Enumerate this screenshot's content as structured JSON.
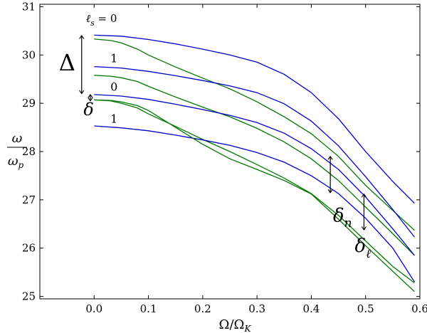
{
  "chart_data": {
    "type": "line",
    "title": "",
    "xlabel": "Ω/Ω_K",
    "ylabel": "ω/ω_p",
    "xlim": [
      -0.1,
      0.6
    ],
    "ylim": [
      24.95,
      31.05
    ],
    "xticks": [
      "0.0",
      "0.1",
      "0.2",
      "0.3",
      "0.4",
      "0.5",
      "0.6"
    ],
    "yticks": [
      "25",
      "26",
      "27",
      "28",
      "29",
      "30",
      "31"
    ],
    "grid": false,
    "legend": "none",
    "colors": {
      "blue": "#0000cc",
      "green": "#007700"
    },
    "series": [
      {
        "color": "blue",
        "x": [
          0,
          0.05,
          0.1,
          0.15,
          0.2,
          0.25,
          0.3,
          0.35,
          0.4,
          0.45,
          0.5,
          0.55,
          0.59
        ],
        "y": [
          30.41,
          30.39,
          30.32,
          30.23,
          30.12,
          30.0,
          29.85,
          29.6,
          29.22,
          28.68,
          28.0,
          27.38,
          26.93
        ]
      },
      {
        "color": "green",
        "x": [
          0,
          0.03,
          0.05,
          0.08,
          0.1,
          0.15,
          0.2,
          0.25,
          0.3,
          0.35,
          0.4,
          0.45,
          0.5,
          0.55,
          0.59
        ],
        "y": [
          30.33,
          30.3,
          30.25,
          30.12,
          30.0,
          29.75,
          29.52,
          29.3,
          29.03,
          28.72,
          28.37,
          27.9,
          27.3,
          26.78,
          26.37
        ]
      },
      {
        "color": "blue",
        "x": [
          0,
          0.05,
          0.1,
          0.15,
          0.2,
          0.25,
          0.3,
          0.35,
          0.4,
          0.45,
          0.5,
          0.55,
          0.59
        ],
        "y": [
          29.76,
          29.73,
          29.66,
          29.57,
          29.47,
          29.36,
          29.22,
          28.99,
          28.63,
          28.12,
          27.48,
          26.8,
          26.23
        ]
      },
      {
        "color": "green",
        "x": [
          0,
          0.03,
          0.05,
          0.08,
          0.1,
          0.15,
          0.2,
          0.25,
          0.3,
          0.35,
          0.4,
          0.45,
          0.5,
          0.55,
          0.59
        ],
        "y": [
          29.58,
          29.56,
          29.53,
          29.45,
          29.35,
          29.13,
          28.92,
          28.72,
          28.48,
          28.2,
          27.85,
          27.4,
          26.85,
          26.3,
          25.85
        ]
      },
      {
        "color": "blue",
        "x": [
          0,
          0.05,
          0.1,
          0.15,
          0.2,
          0.25,
          0.3,
          0.35,
          0.4,
          0.45,
          0.5,
          0.55,
          0.59
        ],
        "y": [
          29.18,
          29.15,
          29.08,
          28.98,
          28.87,
          28.75,
          28.6,
          28.38,
          28.06,
          27.63,
          27.06,
          26.4,
          25.85
        ]
      },
      {
        "color": "green",
        "x": [
          0,
          0.03,
          0.05,
          0.08,
          0.1,
          0.15,
          0.2,
          0.25,
          0.3,
          0.35,
          0.4,
          0.45,
          0.5,
          0.55,
          0.59
        ],
        "y": [
          29.07,
          29.05,
          29.0,
          28.9,
          28.78,
          28.52,
          28.25,
          28.0,
          27.73,
          27.45,
          27.13,
          26.68,
          26.15,
          25.62,
          25.28
        ]
      },
      {
        "color": "blue",
        "x": [
          0,
          0.05,
          0.1,
          0.15,
          0.2,
          0.25,
          0.3,
          0.35,
          0.4,
          0.45,
          0.5,
          0.55,
          0.59
        ],
        "y": [
          28.53,
          28.49,
          28.43,
          28.34,
          28.24,
          28.13,
          27.98,
          27.78,
          27.5,
          27.13,
          26.62,
          26.0,
          25.3
        ]
      },
      {
        "color": "green",
        "x": [
          0,
          0.03,
          0.05,
          0.08,
          0.1,
          0.15,
          0.2,
          0.25,
          0.3,
          0.35,
          0.4,
          0.45,
          0.5,
          0.55,
          0.59
        ],
        "y": [
          29.07,
          29.06,
          29.03,
          28.95,
          28.85,
          28.5,
          28.15,
          27.85,
          27.63,
          27.4,
          27.12,
          26.6,
          26.05,
          25.52,
          25.1
        ]
      }
    ],
    "annotations": [
      {
        "id": "ls0",
        "label": "ℓ_s = 0",
        "x": -0.015,
        "y": 30.68
      },
      {
        "id": "one_a",
        "label": "1",
        "x": 0.03,
        "y": 29.85
      },
      {
        "id": "zero_b",
        "label": "0",
        "x": 0.03,
        "y": 29.26
      },
      {
        "id": "one_b",
        "label": "1",
        "x": 0.03,
        "y": 28.6
      },
      {
        "id": "Delta",
        "label": "Δ",
        "x": -0.065,
        "y": 29.68
      },
      {
        "id": "delta",
        "label": "δ",
        "x": -0.01,
        "y": 28.75
      },
      {
        "id": "delta_n",
        "label": "δ_n",
        "x": 0.44,
        "y": 26.55
      },
      {
        "id": "delta_l",
        "label": "δ_ℓ",
        "x": 0.48,
        "y": 25.92
      }
    ],
    "arrows": [
      {
        "id": "Delta-arrow",
        "x": -0.023,
        "y1": 30.4,
        "y2": 29.2
      },
      {
        "id": "delta-arrow",
        "x": -0.007,
        "y1": 29.18,
        "y2": 29.05
      },
      {
        "id": "delta-n-arrow",
        "x": 0.435,
        "y1": 27.9,
        "y2": 27.15
      },
      {
        "id": "delta-l-arrow",
        "x": 0.497,
        "y1": 27.12,
        "y2": 26.38
      }
    ]
  }
}
